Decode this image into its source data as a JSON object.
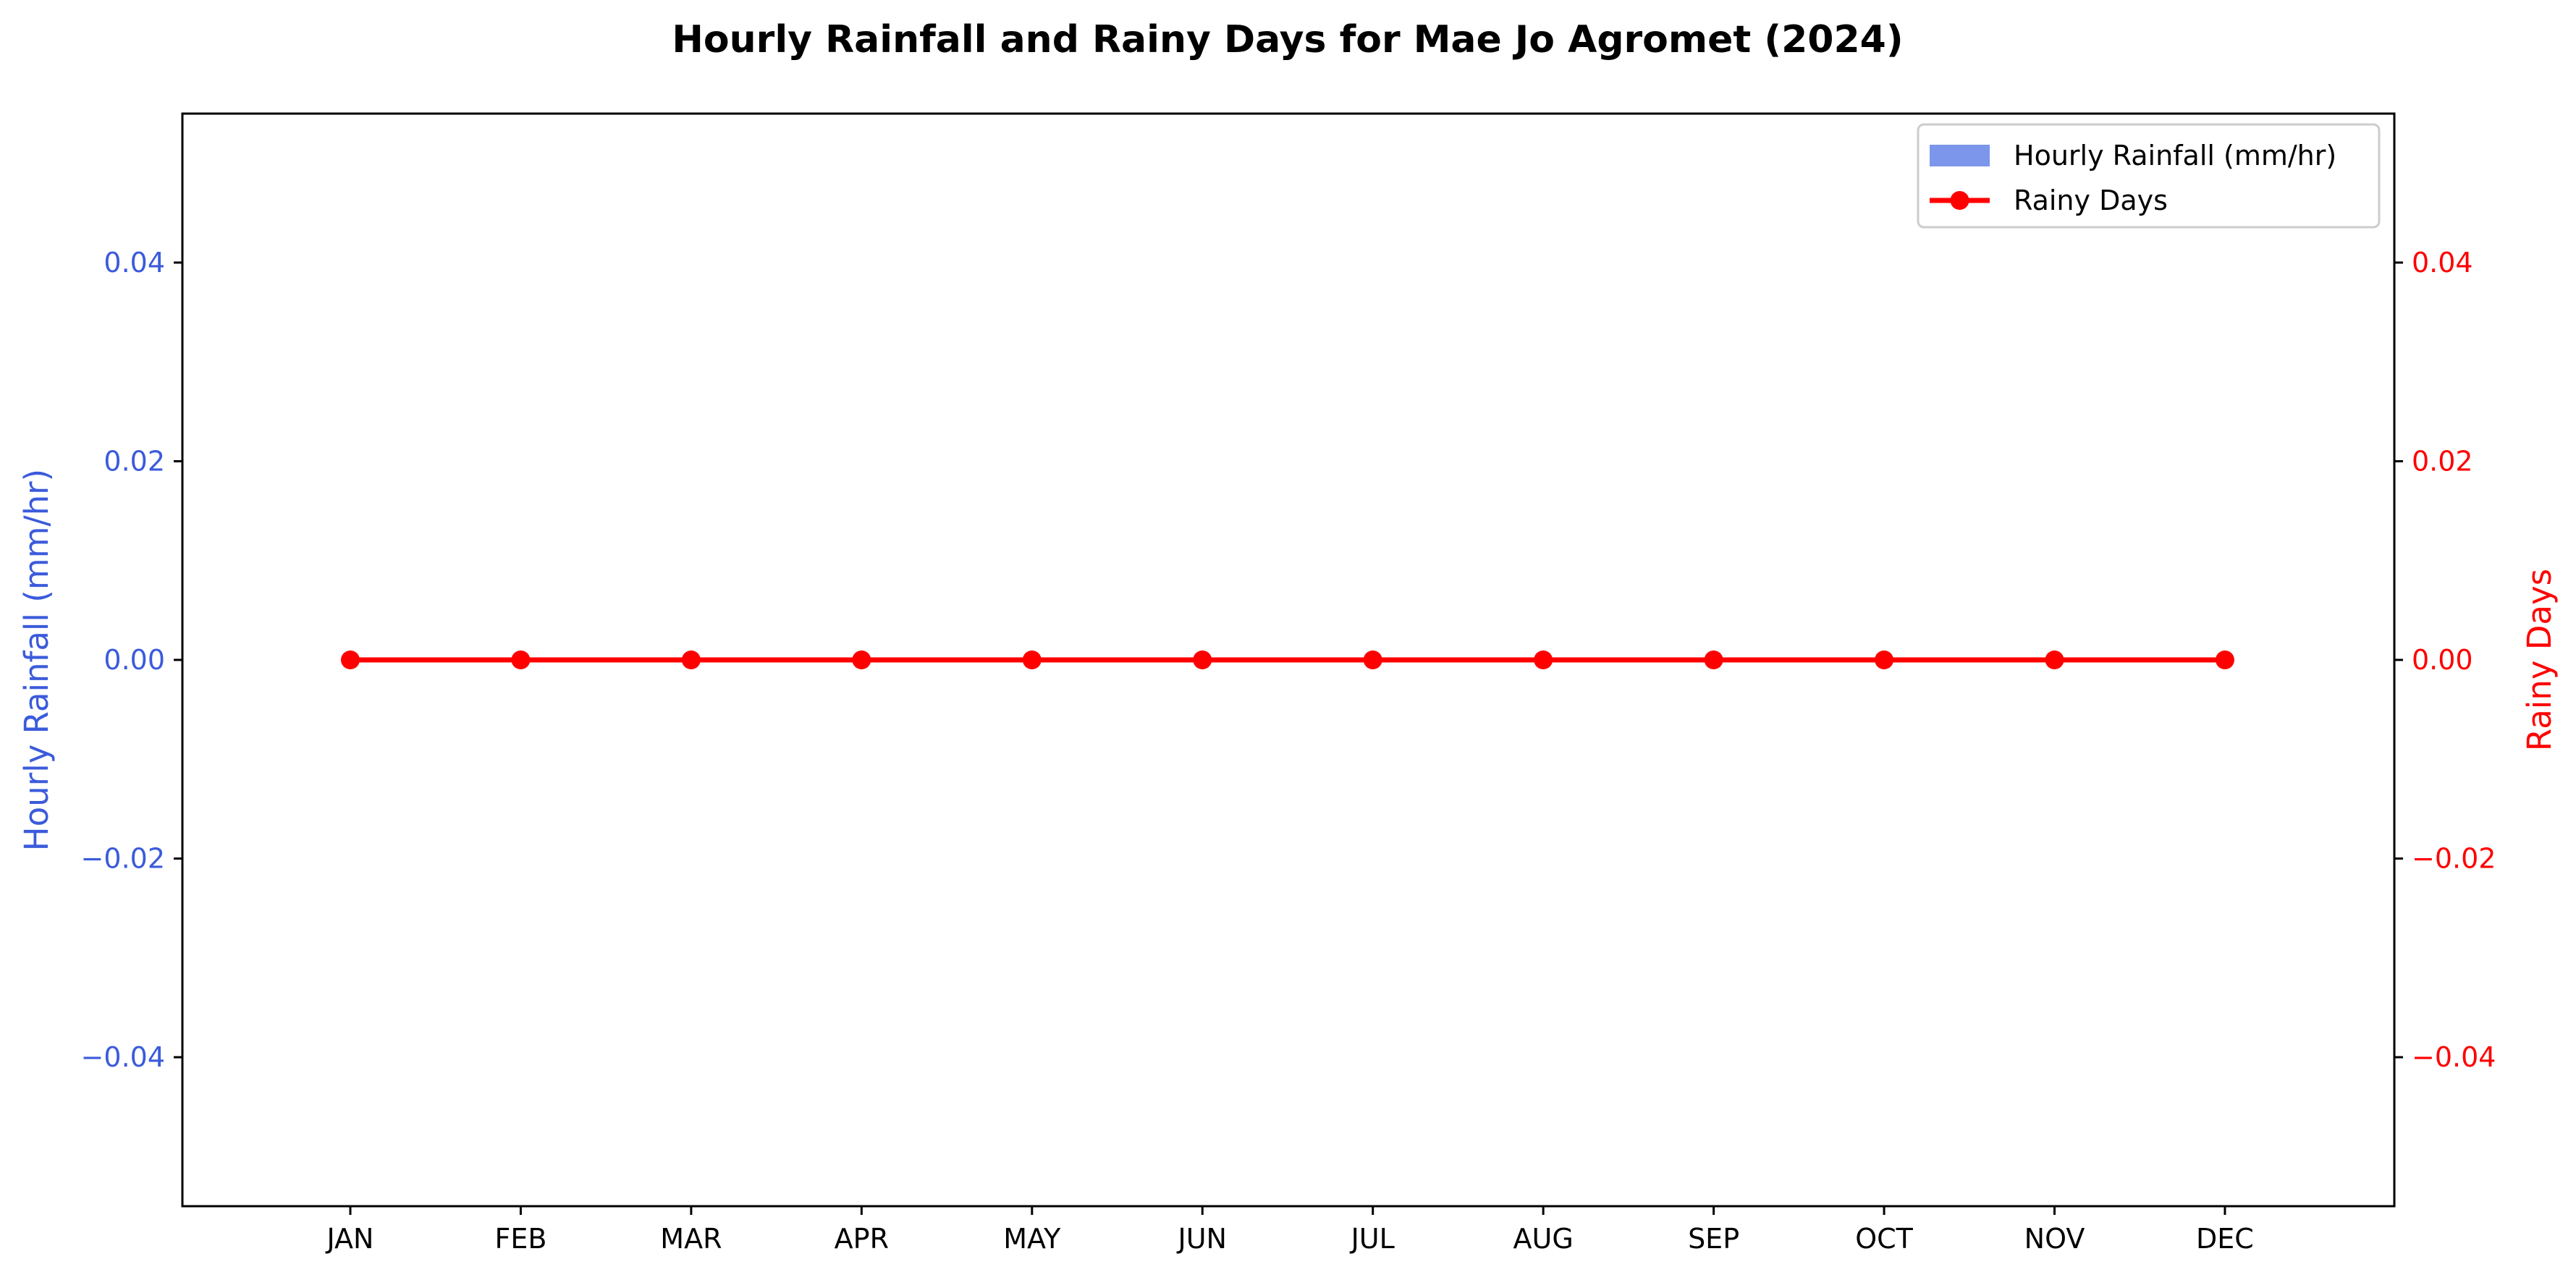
{
  "chart_data": {
    "type": "bar",
    "title": "Hourly Rainfall and Rainy Days for Mae Jo Agromet (2024)",
    "categories": [
      "JAN",
      "FEB",
      "MAR",
      "APR",
      "MAY",
      "JUN",
      "JUL",
      "AUG",
      "SEP",
      "OCT",
      "NOV",
      "DEC"
    ],
    "x_tick_labels": [
      "JAN",
      "FEB",
      "MAR",
      "APR",
      "MAY",
      "JUN",
      "JUL",
      "AUG",
      "SEP",
      "OCT",
      "NOV",
      "DEC"
    ],
    "series": [
      {
        "name": "Hourly Rainfall (mm/hr)",
        "type": "bar",
        "axis": "left",
        "color": "#7b96ea",
        "values": [
          0,
          0,
          0,
          0,
          0,
          0,
          0,
          0,
          0,
          0,
          0,
          0
        ]
      },
      {
        "name": "Rainy Days",
        "type": "line",
        "axis": "right",
        "color": "#ff0000",
        "marker": "circle",
        "values": [
          0,
          0,
          0,
          0,
          0,
          0,
          0,
          0,
          0,
          0,
          0,
          0
        ]
      }
    ],
    "y_left": {
      "label": "Hourly Rainfall (mm/hr)",
      "range": [
        -0.055,
        0.055
      ],
      "ticks": [
        -0.04,
        -0.02,
        0.0,
        0.02,
        0.04
      ],
      "tick_labels": [
        "−0.04",
        "−0.02",
        "0.00",
        "0.02",
        "0.04"
      ],
      "color": "#3b5bdb"
    },
    "y_right": {
      "label": "Rainy Days",
      "range": [
        -0.055,
        0.055
      ],
      "ticks": [
        -0.04,
        -0.02,
        0.0,
        0.02,
        0.04
      ],
      "tick_labels": [
        "−0.04",
        "−0.02",
        "0.00",
        "0.02",
        "0.04"
      ],
      "color": "#ff0000"
    },
    "grid": false,
    "legend": {
      "placement": "top-right",
      "entries": [
        "Hourly Rainfall (mm/hr)",
        "Rainy Days"
      ]
    }
  }
}
